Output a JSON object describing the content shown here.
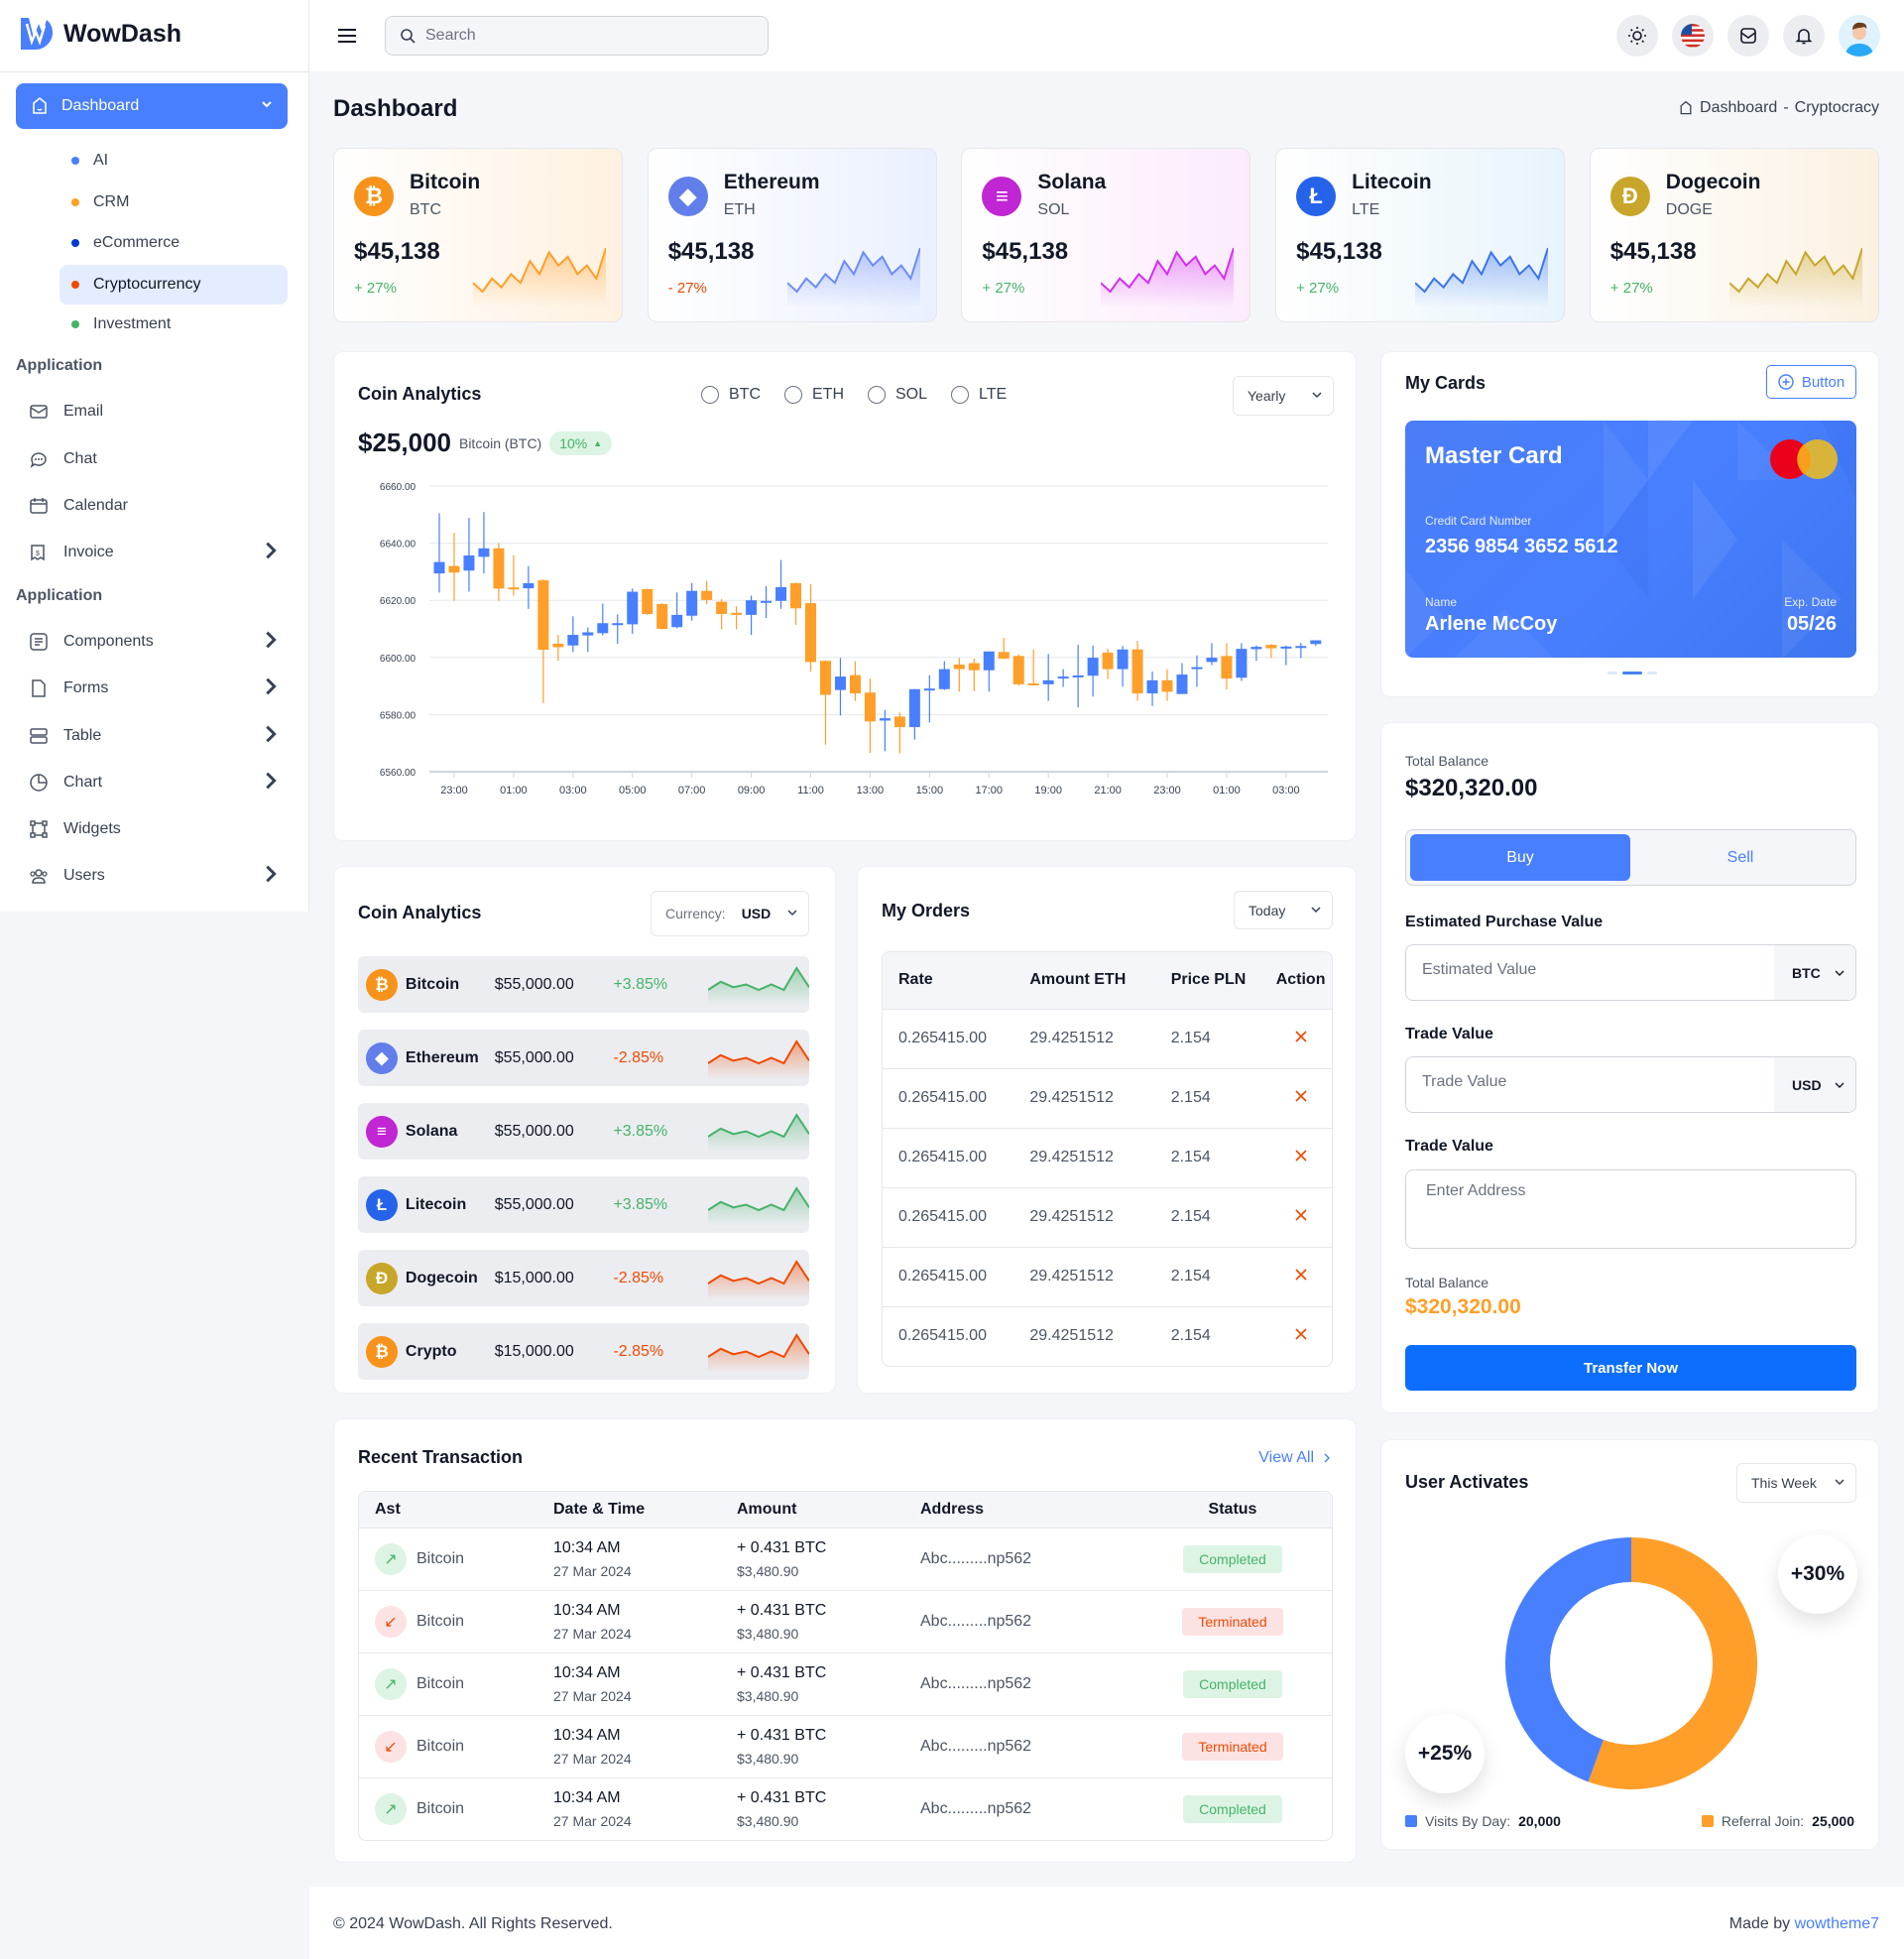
{
  "app": {
    "name": "WowDash"
  },
  "sidebar": {
    "dashboard_label": "Dashboard",
    "sub_items": [
      {
        "label": "AI",
        "color": "#487FFF"
      },
      {
        "label": "CRM",
        "color": "#FF9F29"
      },
      {
        "label": "eCommerce",
        "color": "#003BD1"
      },
      {
        "label": "Cryptocurrency",
        "color": "#EF4A00",
        "active": true
      },
      {
        "label": "Investment",
        "color": "#45B369"
      }
    ],
    "section1": "Application",
    "items1": [
      {
        "label": "Email",
        "icon": "mail-icon",
        "chevron": false
      },
      {
        "label": "Chat",
        "icon": "chat-icon",
        "chevron": false
      },
      {
        "label": "Calendar",
        "icon": "calendar-icon",
        "chevron": false
      },
      {
        "label": "Invoice",
        "icon": "invoice-icon",
        "chevron": true
      }
    ],
    "section2": "Application",
    "items2": [
      {
        "label": "Components",
        "icon": "components-icon",
        "chevron": true
      },
      {
        "label": "Forms",
        "icon": "file-icon",
        "chevron": true
      },
      {
        "label": "Table",
        "icon": "table-icon",
        "chevron": true
      },
      {
        "label": "Chart",
        "icon": "pie-chart-icon",
        "chevron": true
      },
      {
        "label": "Widgets",
        "icon": "widgets-icon",
        "chevron": false
      },
      {
        "label": "Users",
        "icon": "users-icon",
        "chevron": true
      }
    ]
  },
  "header": {
    "search_placeholder": "Search",
    "icons": [
      "theme-toggle-icon",
      "us-flag-icon",
      "mail-icon",
      "bell-icon",
      "user-avatar"
    ]
  },
  "page": {
    "title": "Dashboard",
    "breadcrumb": [
      "Dashboard",
      "-",
      "Cryptocracy"
    ]
  },
  "colors": {
    "accent": "#487FFF",
    "orange": "#FF9F29",
    "green": "#45B369",
    "red": "#EF4A00"
  },
  "coins": [
    {
      "name": "Bitcoin",
      "symbol": "BTC",
      "price": "$45,138",
      "change": "+ 27%",
      "up": true,
      "color": "#F7931A",
      "glyph": "₿",
      "bg": "#FFF1E0",
      "trend": [
        3,
        1,
        4,
        2,
        5,
        3,
        8,
        5,
        10,
        7,
        9,
        5,
        7,
        4,
        11
      ]
    },
    {
      "name": "Ethereum",
      "symbol": "ETH",
      "price": "$45,138",
      "change": "- 27%",
      "up": false,
      "color": "#627EEA",
      "glyph": "◆",
      "bg": "#EAF0FF",
      "trend": [
        3,
        1,
        4,
        2,
        5,
        3,
        8,
        5,
        10,
        7,
        9,
        5,
        7,
        4,
        11
      ]
    },
    {
      "name": "Solana",
      "symbol": "SOL",
      "price": "$45,138",
      "change": "+ 27%",
      "up": true,
      "color": "#C026D3",
      "glyph": "≡",
      "bg": "#FCEBFC",
      "trend": [
        3,
        1,
        4,
        2,
        5,
        3,
        8,
        5,
        10,
        7,
        9,
        5,
        7,
        4,
        11
      ]
    },
    {
      "name": "Litecoin",
      "symbol": "LTE",
      "price": "$45,138",
      "change": "+ 27%",
      "up": true,
      "color": "#2563EB",
      "glyph": "Ł",
      "bg": "#E8F4FB",
      "trend": [
        3,
        1,
        4,
        2,
        5,
        3,
        8,
        5,
        10,
        7,
        9,
        5,
        7,
        4,
        11
      ]
    },
    {
      "name": "Dogecoin",
      "symbol": "DOGE",
      "price": "$45,138",
      "change": "+ 27%",
      "up": true,
      "color": "#C8A62A",
      "glyph": "Đ",
      "bg": "#FBF1E2",
      "trend": [
        3,
        1,
        4,
        2,
        5,
        3,
        8,
        5,
        10,
        7,
        9,
        5,
        7,
        4,
        11
      ]
    }
  ],
  "coin_analytics": {
    "title": "Coin Analytics",
    "options": [
      "BTC",
      "ETH",
      "SOL",
      "LTE"
    ],
    "period": "Yearly",
    "price": "$25,000",
    "coin_label": "Bitcoin (BTC)",
    "change": "10%"
  },
  "chart_data": {
    "type": "candlestick",
    "ylim": [
      6560,
      6660
    ],
    "y_ticks": [
      "6660.00",
      "6640.00",
      "6620.00",
      "6600.00",
      "6580.00",
      "6560.00"
    ],
    "x_ticks": [
      "23:00",
      "01:00",
      "03:00",
      "05:00",
      "07:00",
      "09:00",
      "11:00",
      "13:00",
      "15:00",
      "17:00",
      "19:00",
      "21:00",
      "23:00",
      "01:00",
      "03:00"
    ],
    "grid": true,
    "up_color": "#487FFF",
    "down_color": "#FF9F29",
    "candle_fields": [
      "time",
      "open",
      "high",
      "low",
      "close"
    ],
    "candles": [
      [
        "22:30",
        6629.4,
        6650.5,
        6622.7,
        6633.4
      ],
      [
        "23:00",
        6632.0,
        6643.6,
        6619.8,
        6629.7
      ],
      [
        "23:30",
        6630.4,
        6648.8,
        6623.0,
        6635.7
      ],
      [
        "00:00",
        6635.2,
        6650.9,
        6629.4,
        6638.2
      ],
      [
        "00:30",
        6638.2,
        6640.0,
        6619.8,
        6624.1
      ],
      [
        "01:00",
        6624.5,
        6635.8,
        6621.6,
        6624.0
      ],
      [
        "01:30",
        6624.2,
        6632.0,
        6617.0,
        6626.0
      ],
      [
        "02:00",
        6627.0,
        6627.4,
        6584.0,
        6602.7
      ],
      [
        "02:30",
        6604.8,
        6607.9,
        6598.9,
        6603.6
      ],
      [
        "03:00",
        6604.2,
        6614.4,
        6601.9,
        6607.9
      ],
      [
        "03:30",
        6607.7,
        6610.5,
        6601.9,
        6608.8
      ],
      [
        "04:00",
        6608.5,
        6618.8,
        6607.7,
        6612.0
      ],
      [
        "04:30",
        6611.6,
        6615.1,
        6604.8,
        6612.0
      ],
      [
        "05:00",
        6611.6,
        6624.1,
        6608.3,
        6623.0
      ],
      [
        "05:30",
        6623.9,
        6624.1,
        6614.9,
        6615.2
      ],
      [
        "06:00",
        6618.7,
        6619.0,
        6609.8,
        6610.0
      ],
      [
        "06:30",
        6610.6,
        6622.7,
        6610.2,
        6614.9
      ],
      [
        "07:00",
        6614.6,
        6626.1,
        6612.9,
        6623.3
      ],
      [
        "07:30",
        6623.3,
        6626.8,
        6618.7,
        6620.1
      ],
      [
        "08:00",
        6619.5,
        6620.4,
        6609.8,
        6615.2
      ],
      [
        "08:30",
        6615.6,
        6617.9,
        6609.8,
        6614.9
      ],
      [
        "09:00",
        6614.9,
        6621.6,
        6607.9,
        6620.0
      ],
      [
        "09:30",
        6619.3,
        6625.0,
        6613.8,
        6619.8
      ],
      [
        "10:00",
        6619.8,
        6634.1,
        6617.0,
        6624.6
      ],
      [
        "10:30",
        6626.0,
        6626.2,
        6611.4,
        6617.2
      ],
      [
        "11:00",
        6619.0,
        6625.6,
        6595.0,
        6598.4
      ],
      [
        "11:30",
        6598.8,
        6599.0,
        6569.5,
        6586.9
      ],
      [
        "12:00",
        6588.6,
        6599.8,
        6579.7,
        6593.3
      ],
      [
        "12:30",
        6593.8,
        6598.7,
        6584.8,
        6587.4
      ],
      [
        "13:00",
        6587.7,
        6592.6,
        6566.6,
        6577.6
      ],
      [
        "13:30",
        6577.9,
        6581.6,
        6567.2,
        6578.7
      ],
      [
        "14:00",
        6579.3,
        6580.7,
        6566.4,
        6575.6
      ],
      [
        "14:30",
        6575.6,
        6588.9,
        6571.2,
        6588.9
      ],
      [
        "15:00",
        6588.6,
        6593.8,
        6577.2,
        6589.1
      ],
      [
        "15:30",
        6588.9,
        6598.7,
        6588.6,
        6595.9
      ],
      [
        "16:00",
        6597.5,
        6599.8,
        6588.0,
        6595.9
      ],
      [
        "16:30",
        6598.0,
        6599.6,
        6588.2,
        6595.5
      ],
      [
        "17:00",
        6595.5,
        6602.1,
        6588.0,
        6602.1
      ],
      [
        "17:30",
        6601.9,
        6606.9,
        6599.4,
        6599.6
      ],
      [
        "18:00",
        6600.5,
        6601.0,
        6590.1,
        6590.6
      ],
      [
        "18:30",
        6590.9,
        6602.8,
        6590.3,
        6590.6
      ],
      [
        "19:00",
        6590.6,
        6601.2,
        6584.8,
        6592.0
      ],
      [
        "19:30",
        6592.9,
        6595.9,
        6589.7,
        6593.3
      ],
      [
        "20:00",
        6593.0,
        6604.4,
        6582.5,
        6593.7
      ],
      [
        "20:30",
        6593.6,
        6604.2,
        6586.3,
        6599.9
      ],
      [
        "21:00",
        6601.7,
        6603.1,
        6592.4,
        6595.9
      ],
      [
        "21:30",
        6595.9,
        6604.0,
        6589.7,
        6602.8
      ],
      [
        "22:00",
        6602.8,
        6605.8,
        6584.8,
        6587.4
      ],
      [
        "22:30",
        6587.4,
        6595.0,
        6583.0,
        6592.0
      ],
      [
        "23:00",
        6592.0,
        6595.9,
        6584.8,
        6588.0
      ],
      [
        "23:30",
        6587.2,
        6598.0,
        6587.2,
        6594.0
      ],
      [
        "00:00",
        6596.0,
        6600.7,
        6589.7,
        6596.6
      ],
      [
        "00:30",
        6598.4,
        6605.0,
        6597.3,
        6599.9
      ],
      [
        "01:00",
        6600.5,
        6605.0,
        6588.8,
        6592.6
      ],
      [
        "01:30",
        6592.9,
        6605.0,
        6591.8,
        6603.0
      ],
      [
        "02:00",
        6602.9,
        6604.2,
        6598.8,
        6603.7
      ],
      [
        "02:30",
        6604.4,
        6604.7,
        6599.8,
        6603.2
      ],
      [
        "03:00",
        6603.2,
        6604.2,
        6597.3,
        6603.8
      ],
      [
        "03:30",
        6603.6,
        6605.1,
        6599.8,
        6604.0
      ],
      [
        "04:00",
        6604.7,
        6606.0,
        6604.0,
        6606.0
      ]
    ]
  },
  "my_cards": {
    "title": "My Cards",
    "button": "Button",
    "card_brand": "Master Card",
    "number_label": "Credit Card Number",
    "number": "2356 9854 3652 5612",
    "name_label": "Name",
    "name": "Arlene McCoy",
    "exp_label": "Exp. Date",
    "exp": "05/26",
    "active_slide": 2,
    "slides": 3
  },
  "trade": {
    "balance_label": "Total Balance",
    "balance": "$320,320.00",
    "tabs": [
      "Buy",
      "Sell"
    ],
    "est_label": "Estimated Purchase Value",
    "est_placeholder": "Estimated Value",
    "est_currency": "BTC",
    "trade_label": "Trade Value",
    "trade_placeholder": "Trade Value",
    "trade_currency": "USD",
    "addr_label": "Trade Value",
    "addr_placeholder": "Enter Address",
    "total_label": "Total Balance",
    "total": "$320,320.00",
    "transfer": "Transfer Now"
  },
  "coin_list": {
    "title": "Coin Analytics",
    "currency_label": "Currency:",
    "currency": "USD",
    "rows": [
      {
        "name": "Bitcoin",
        "price": "$55,000.00",
        "change": "+3.85%",
        "up": true,
        "color": "#F7931A",
        "glyph": "₿"
      },
      {
        "name": "Ethereum",
        "price": "$55,000.00",
        "change": "-2.85%",
        "up": false,
        "color": "#627EEA",
        "glyph": "◆"
      },
      {
        "name": "Solana",
        "price": "$55,000.00",
        "change": "+3.85%",
        "up": true,
        "color": "#C026D3",
        "glyph": "≡"
      },
      {
        "name": "Litecoin",
        "price": "$55,000.00",
        "change": "+3.85%",
        "up": true,
        "color": "#2563EB",
        "glyph": "Ł"
      },
      {
        "name": "Dogecoin",
        "price": "$15,000.00",
        "change": "-2.85%",
        "up": false,
        "color": "#C8A62A",
        "glyph": "Đ"
      },
      {
        "name": "Crypto",
        "price": "$15,000.00",
        "change": "-2.85%",
        "up": false,
        "color": "#F7931A",
        "glyph": "₿"
      }
    ],
    "trend": [
      2,
      5,
      3,
      4,
      2,
      4,
      2,
      10,
      3
    ]
  },
  "orders": {
    "title": "My Orders",
    "period": "Today",
    "columns": [
      "Rate",
      "Amount ETH",
      "Price PLN",
      "Action"
    ],
    "rows": [
      {
        "rate": "0.265415.00",
        "amount": "29.4251512",
        "price": "2.154",
        "up": true
      },
      {
        "rate": "0.265415.00",
        "amount": "29.4251512",
        "price": "2.154",
        "up": true
      },
      {
        "rate": "0.265415.00",
        "amount": "29.4251512",
        "price": "2.154",
        "up": false
      },
      {
        "rate": "0.265415.00",
        "amount": "29.4251512",
        "price": "2.154",
        "up": true
      },
      {
        "rate": "0.265415.00",
        "amount": "29.4251512",
        "price": "2.154",
        "up": false
      },
      {
        "rate": "0.265415.00",
        "amount": "29.4251512",
        "price": "2.154",
        "up": false
      }
    ]
  },
  "transactions": {
    "title": "Recent Transaction",
    "view_all": "View All",
    "columns": [
      "Ast",
      "Date & Time",
      "Amount",
      "Address",
      "Status"
    ],
    "rows": [
      {
        "asset": "Bitcoin",
        "time": "10:34 AM",
        "date": "27 Mar 2024",
        "amount": "+ 0.431 BTC",
        "usd": "$3,480.90",
        "address": "Abc.........np562",
        "status": "Completed",
        "up": true
      },
      {
        "asset": "Bitcoin",
        "time": "10:34 AM",
        "date": "27 Mar 2024",
        "amount": "+ 0.431 BTC",
        "usd": "$3,480.90",
        "address": "Abc.........np562",
        "status": "Terminated",
        "up": false
      },
      {
        "asset": "Bitcoin",
        "time": "10:34 AM",
        "date": "27 Mar 2024",
        "amount": "+ 0.431 BTC",
        "usd": "$3,480.90",
        "address": "Abc.........np562",
        "status": "Completed",
        "up": true
      },
      {
        "asset": "Bitcoin",
        "time": "10:34 AM",
        "date": "27 Mar 2024",
        "amount": "+ 0.431 BTC",
        "usd": "$3,480.90",
        "address": "Abc.........np562",
        "status": "Terminated",
        "up": false
      },
      {
        "asset": "Bitcoin",
        "time": "10:34 AM",
        "date": "27 Mar 2024",
        "amount": "+ 0.431 BTC",
        "usd": "$3,480.90",
        "address": "Abc.........np562",
        "status": "Completed",
        "up": true
      }
    ]
  },
  "user_activates": {
    "title": "User Activates",
    "period": "This Week",
    "bubble_top": "+30%",
    "bubble_bottom": "+25%",
    "segments": [
      {
        "label": "Visits By Day:",
        "value": 20000,
        "display": "20,000",
        "color": "#487FFF"
      },
      {
        "label": "Referral Join:",
        "value": 25000,
        "display": "25,000",
        "color": "#FF9F29"
      }
    ]
  },
  "footer": {
    "copyright": "© 2024 WowDash. All Rights Reserved.",
    "made_by": "Made by",
    "author": "wowtheme7"
  }
}
